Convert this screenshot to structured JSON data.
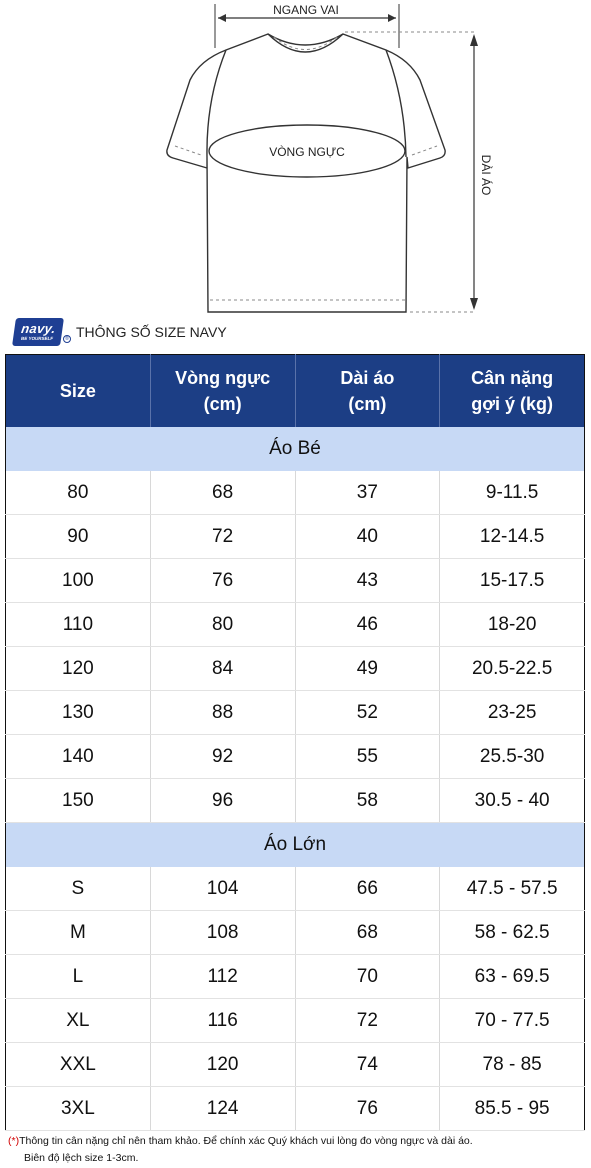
{
  "diagram": {
    "shoulder_label": "NGANG VAI",
    "chest_label": "VÒNG NGỰC",
    "length_label": "DÀI ÁO"
  },
  "brand": {
    "logo_text": "navy.",
    "logo_tagline": "BE YOURSELF",
    "title": "THÔNG SỐ SIZE NAVY"
  },
  "table": {
    "headers": [
      {
        "line1": "Size",
        "line2": ""
      },
      {
        "line1": "Vòng ngực",
        "line2": "(cm)"
      },
      {
        "line1": "Dài áo",
        "line2": "(cm)"
      },
      {
        "line1": "Cân nặng",
        "line2": "gợi ý (kg)"
      }
    ],
    "sections": [
      {
        "title": "Áo Bé",
        "rows": [
          [
            "80",
            "68",
            "37",
            "9-11.5"
          ],
          [
            "90",
            "72",
            "40",
            "12-14.5"
          ],
          [
            "100",
            "76",
            "43",
            "15-17.5"
          ],
          [
            "110",
            "80",
            "46",
            "18-20"
          ],
          [
            "120",
            "84",
            "49",
            "20.5-22.5"
          ],
          [
            "130",
            "88",
            "52",
            "23-25"
          ],
          [
            "140",
            "92",
            "55",
            "25.5-30"
          ],
          [
            "150",
            "96",
            "58",
            "30.5 - 40"
          ]
        ]
      },
      {
        "title": "Áo Lớn",
        "rows": [
          [
            "S",
            "104",
            "66",
            "47.5 - 57.5"
          ],
          [
            "M",
            "108",
            "68",
            "58 - 62.5"
          ],
          [
            "L",
            "112",
            "70",
            "63 - 69.5"
          ],
          [
            "XL",
            "116",
            "72",
            "70 - 77.5"
          ],
          [
            "XXL",
            "120",
            "74",
            "78 - 85"
          ],
          [
            "3XL",
            "124",
            "76",
            "85.5 - 95"
          ]
        ]
      }
    ]
  },
  "note": {
    "mark": "(*)",
    "line1": "Thông tin cân nặng chỉ nên tham khảo. Để chính xác Quý khách vui lòng đo vòng ngực và dài áo.",
    "line2": "Biên độ lệch size 1-3cm."
  },
  "colors": {
    "header_bg": "#1c3e85",
    "section_bg": "#c7d9f5",
    "logo_bg": "#1f3f93",
    "note_mark": "#d00000"
  }
}
